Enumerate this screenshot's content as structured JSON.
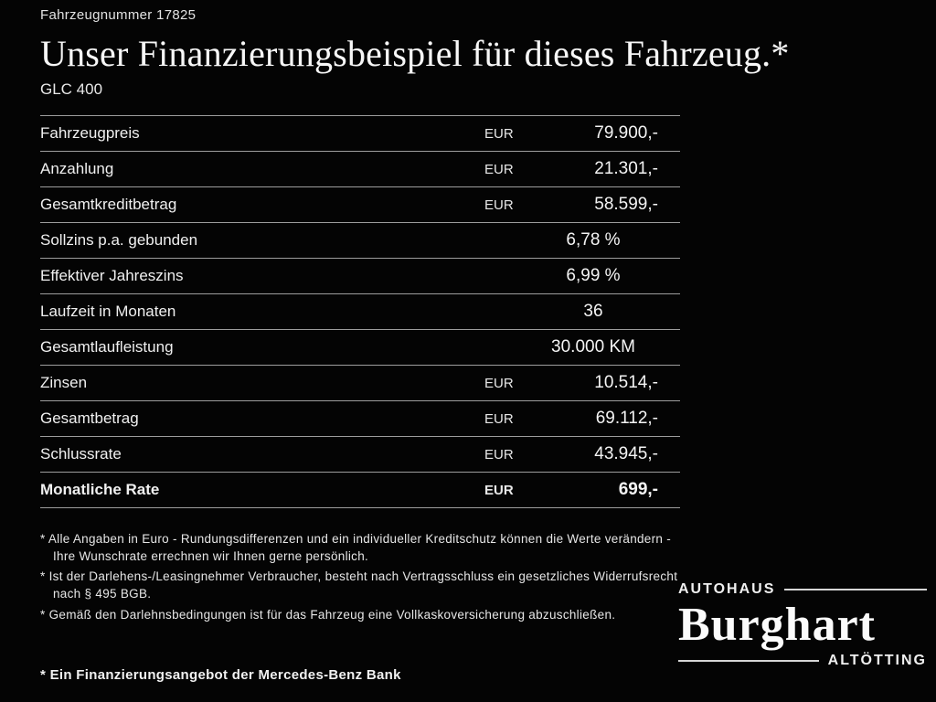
{
  "header": {
    "vehicle_number": "Fahrzeugnummer 17825",
    "title": "Unser Finanzierungsbeispiel für dieses Fahrzeug.*",
    "model": "GLC 400"
  },
  "table": {
    "rows": [
      {
        "label": "Fahrzeugpreis",
        "currency": "EUR",
        "value": "79.900,-",
        "bold": false
      },
      {
        "label": "Anzahlung",
        "currency": "EUR",
        "value": "21.301,-",
        "bold": false
      },
      {
        "label": "Gesamtkreditbetrag",
        "currency": "EUR",
        "value": "58.599,-",
        "bold": false
      },
      {
        "label": "Sollzins p.a. gebunden",
        "currency": "",
        "value": "6,78 %",
        "bold": false
      },
      {
        "label": "Effektiver Jahreszins",
        "currency": "",
        "value": "6,99 %",
        "bold": false
      },
      {
        "label": "Laufzeit in Monaten",
        "currency": "",
        "value": "36",
        "bold": false
      },
      {
        "label": "Gesamtlaufleistung",
        "currency": "",
        "value": "30.000 KM",
        "bold": false
      },
      {
        "label": "Zinsen",
        "currency": "EUR",
        "value": "10.514,-",
        "bold": false
      },
      {
        "label": "Gesamtbetrag",
        "currency": "EUR",
        "value": "69.112,-",
        "bold": false
      },
      {
        "label": "Schlussrate",
        "currency": "EUR",
        "value": "43.945,-",
        "bold": false
      },
      {
        "label": "Monatliche Rate",
        "currency": "EUR",
        "value": "699,-",
        "bold": true
      }
    ]
  },
  "footnotes": [
    "* Alle Angaben in Euro - Rundungsdifferenzen und ein individueller Kreditschutz können die Werte verändern - Ihre Wunschrate errechnen wir Ihnen gerne persönlich.",
    "* Ist der Darlehens-/Leasingnehmer Verbraucher, besteht nach Vertragsschluss ein gesetzliches Widerrufsrecht nach § 495 BGB.",
    "* Gemäß den Darlehnsbedingungen ist für das Fahrzeug eine Vollkaskoversicherung abzuschließen."
  ],
  "financing_note": "* Ein Finanzierungsangebot der Mercedes-Benz Bank",
  "logo": {
    "top": "Autohaus",
    "name": "Burghart",
    "city": "Altötting"
  },
  "colors": {
    "background": "#040404",
    "text": "#f0f0f0",
    "rule": "#9d9d9d"
  }
}
